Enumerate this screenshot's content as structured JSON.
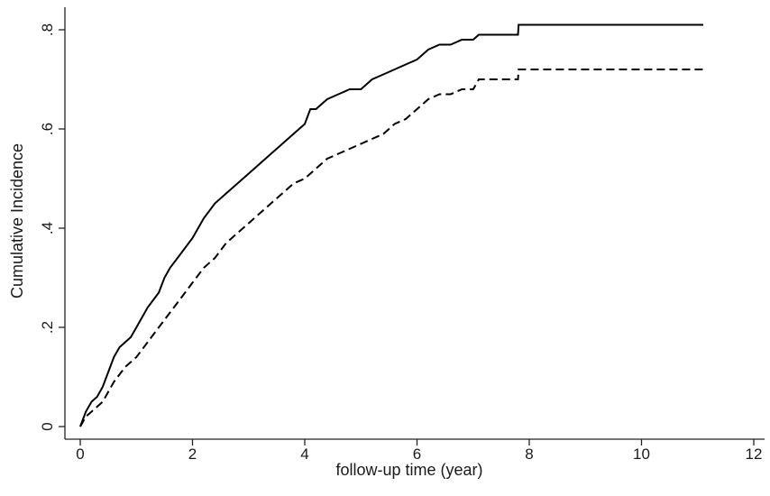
{
  "chart_data": {
    "type": "line",
    "title": "",
    "xlabel": "follow-up time (year)",
    "ylabel": "Cumulative Incidence",
    "xlim": [
      0,
      12
    ],
    "ylim": [
      0,
      0.8
    ],
    "x_ticks": [
      0,
      2,
      4,
      6,
      8,
      10,
      12
    ],
    "x_tick_labels": [
      "0",
      "2",
      "4",
      "6",
      "8",
      "10",
      "12"
    ],
    "y_ticks": [
      0,
      0.2,
      0.4,
      0.6,
      0.8
    ],
    "y_tick_labels": [
      "0",
      ".2",
      ".4",
      ".6",
      ".8"
    ],
    "grid": false,
    "legend": "none",
    "series": [
      {
        "style": "solid",
        "color": "#000000",
        "x": [
          0,
          0.1,
          0.2,
          0.3,
          0.4,
          0.5,
          0.6,
          0.7,
          0.8,
          0.9,
          1.0,
          1.2,
          1.4,
          1.5,
          1.6,
          1.8,
          2.0,
          2.2,
          2.4,
          2.6,
          2.8,
          3.0,
          3.2,
          3.4,
          3.6,
          3.8,
          4.0,
          4.1,
          4.2,
          4.4,
          4.6,
          4.8,
          5.0,
          5.2,
          5.4,
          5.6,
          5.8,
          6.0,
          6.2,
          6.4,
          6.6,
          6.8,
          7.0,
          7.1,
          7.4,
          7.8,
          7.81,
          9.0,
          10.0,
          11.1
        ],
        "y": [
          0,
          0.03,
          0.05,
          0.06,
          0.08,
          0.11,
          0.14,
          0.16,
          0.17,
          0.18,
          0.2,
          0.24,
          0.27,
          0.3,
          0.32,
          0.35,
          0.38,
          0.42,
          0.45,
          0.47,
          0.49,
          0.51,
          0.53,
          0.55,
          0.57,
          0.59,
          0.61,
          0.64,
          0.64,
          0.66,
          0.67,
          0.68,
          0.68,
          0.7,
          0.71,
          0.72,
          0.73,
          0.74,
          0.76,
          0.77,
          0.77,
          0.78,
          0.78,
          0.79,
          0.79,
          0.79,
          0.81,
          0.81,
          0.81,
          0.81
        ]
      },
      {
        "style": "dashed",
        "color": "#000000",
        "x": [
          0,
          0.1,
          0.2,
          0.3,
          0.4,
          0.5,
          0.6,
          0.8,
          1.0,
          1.2,
          1.4,
          1.6,
          1.8,
          2.0,
          2.2,
          2.4,
          2.6,
          2.8,
          3.0,
          3.2,
          3.4,
          3.6,
          3.8,
          4.0,
          4.2,
          4.4,
          4.6,
          4.8,
          5.0,
          5.2,
          5.4,
          5.6,
          5.8,
          6.0,
          6.2,
          6.4,
          6.6,
          6.8,
          7.0,
          7.1,
          7.4,
          7.8,
          7.81,
          9.0,
          10.0,
          11.1
        ],
        "y": [
          0,
          0.02,
          0.03,
          0.04,
          0.05,
          0.07,
          0.09,
          0.12,
          0.14,
          0.17,
          0.2,
          0.23,
          0.26,
          0.29,
          0.32,
          0.34,
          0.37,
          0.39,
          0.41,
          0.43,
          0.45,
          0.47,
          0.49,
          0.5,
          0.52,
          0.54,
          0.55,
          0.56,
          0.57,
          0.58,
          0.59,
          0.61,
          0.62,
          0.64,
          0.66,
          0.67,
          0.67,
          0.68,
          0.68,
          0.7,
          0.7,
          0.7,
          0.72,
          0.72,
          0.72,
          0.72
        ]
      }
    ]
  }
}
